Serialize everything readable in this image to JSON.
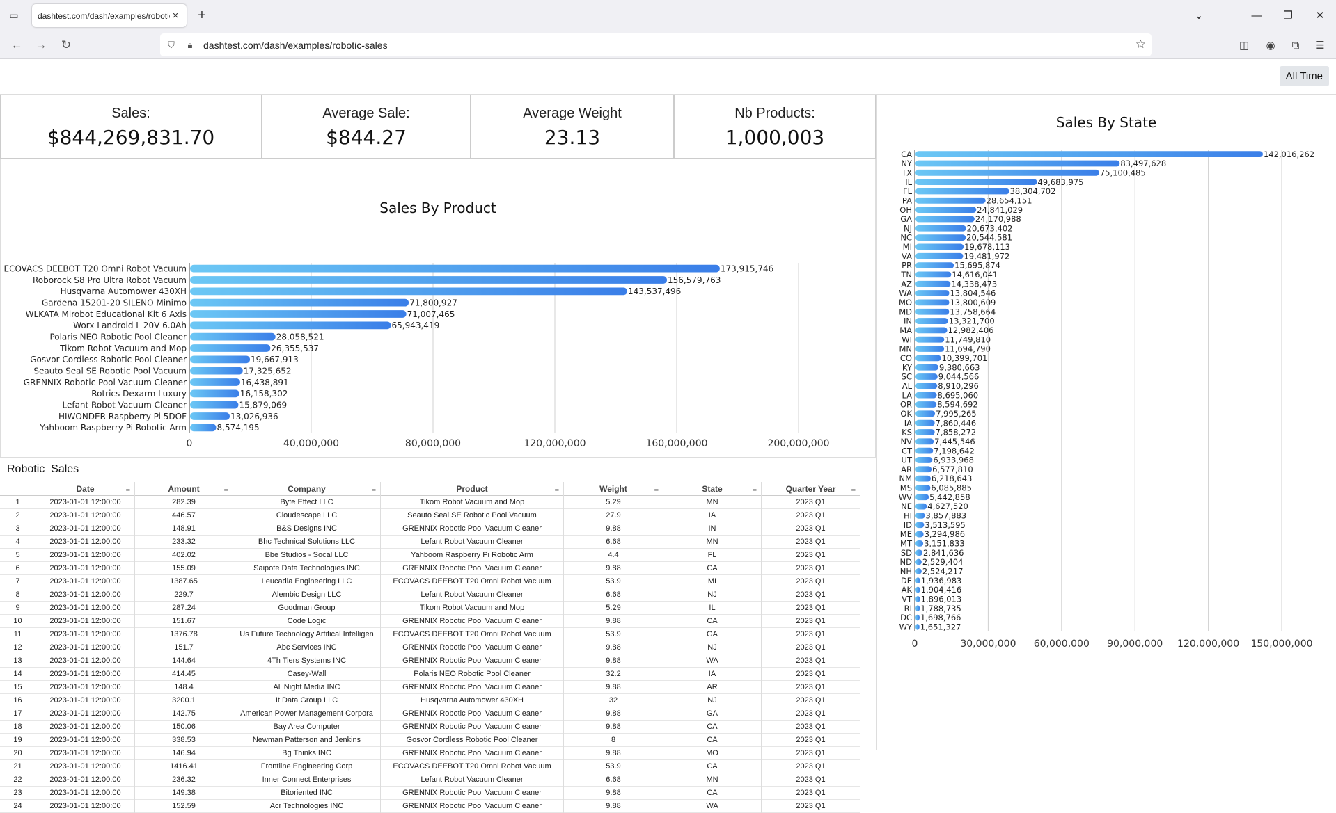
{
  "browser": {
    "tab_title": "dashtest.com/dash/examples/robotic-sales",
    "url": "dashtest.com/dash/examples/robotic-sales",
    "new_tab_label": "+",
    "close_tab_label": "×"
  },
  "toolbar": {
    "all_time_label": "All Time"
  },
  "kpis": [
    {
      "label": "Sales:",
      "value": "$844,269,831.70"
    },
    {
      "label": "Average Sale:",
      "value": "$844.27"
    },
    {
      "label": "Average Weight",
      "value": "23.13"
    },
    {
      "label": "Nb Products:",
      "value": "1,000,003"
    }
  ],
  "chart_data": [
    {
      "type": "bar",
      "orientation": "horizontal",
      "title": "Sales By Product",
      "xlim": [
        0,
        200000000
      ],
      "xticks": [
        0,
        40000000,
        80000000,
        120000000,
        160000000,
        200000000
      ],
      "xtick_labels": [
        "0",
        "40,000,000",
        "80,000,000",
        "120,000,000",
        "160,000,000",
        "200,000,000"
      ],
      "grid": true,
      "categories": [
        "ECOVACS DEEBOT T20 Omni Robot Vacuum",
        "Roborock S8 Pro Ultra Robot Vacuum",
        "Husqvarna Automower 430XH",
        "Gardena 15201-20 SILENO Minimo",
        "WLKATA Mirobot Educational Kit 6 Axis",
        "Worx Landroid L 20V 6.0Ah",
        "Polaris NEO Robotic Pool Cleaner",
        "Tikom Robot Vacuum and Mop",
        "Gosvor Cordless Robotic Pool Cleaner",
        "Seauto Seal SE Robotic Pool Vacuum",
        "GRENNIX Robotic Pool Vacuum Cleaner",
        "Rotrics Dexarm Luxury",
        "Lefant Robot Vacuum Cleaner",
        "HIWONDER Raspberry Pi 5DOF",
        "Yahboom Raspberry Pi Robotic Arm"
      ],
      "values": [
        173915746,
        156579763,
        143537496,
        71800927,
        71007465,
        65943419,
        28058521,
        26355537,
        19667913,
        17325652,
        16438891,
        16158302,
        15879069,
        13026936,
        8574195
      ],
      "value_labels": [
        "173,915,746",
        "156,579,763",
        "143,537,496",
        "71,800,927",
        "71,007,465",
        "65,943,419",
        "28,058,521",
        "26,355,537",
        "19,667,913",
        "17,325,652",
        "16,438,891",
        "16,158,302",
        "15,879,069",
        "13,026,936",
        "8,574,195"
      ]
    },
    {
      "type": "bar",
      "orientation": "horizontal",
      "title": "Sales By State",
      "xlim": [
        0,
        150000000
      ],
      "xticks": [
        0,
        30000000,
        60000000,
        90000000,
        120000000,
        150000000
      ],
      "xtick_labels": [
        "0",
        "30,000,000",
        "60,000,000",
        "90,000,000",
        "120,000,000",
        "150,000,000"
      ],
      "grid": true,
      "categories": [
        "CA",
        "NY",
        "TX",
        "IL",
        "FL",
        "PA",
        "OH",
        "GA",
        "NJ",
        "NC",
        "MI",
        "VA",
        "PR",
        "TN",
        "AZ",
        "WA",
        "MO",
        "MD",
        "IN",
        "MA",
        "WI",
        "MN",
        "CO",
        "KY",
        "SC",
        "AL",
        "LA",
        "OR",
        "OK",
        "IA",
        "KS",
        "NV",
        "CT",
        "UT",
        "AR",
        "NM",
        "MS",
        "WV",
        "NE",
        "HI",
        "ID",
        "ME",
        "MT",
        "SD",
        "ND",
        "NH",
        "DE",
        "AK",
        "VT",
        "RI",
        "DC",
        "WY"
      ],
      "values": [
        142016262,
        83497628,
        75100485,
        49683975,
        38304702,
        28654151,
        24841029,
        24170988,
        20673402,
        20544581,
        19678113,
        19481972,
        15695874,
        14616041,
        14338473,
        13804546,
        13800609,
        13758664,
        13321700,
        12982406,
        11749810,
        11694790,
        10399701,
        9380663,
        9044566,
        8910296,
        8695060,
        8594692,
        7995265,
        7860446,
        7858272,
        7445546,
        7198642,
        6933968,
        6577810,
        6218643,
        6085885,
        5442858,
        4627520,
        3857883,
        3513595,
        3294986,
        3151833,
        2841636,
        2529404,
        2524217,
        1936983,
        1904416,
        1896013,
        1788735,
        1698766,
        1651327
      ],
      "value_labels": [
        "142,016,262",
        "83,497,628",
        "75,100,485",
        "49,683,975",
        "38,304,702",
        "28,654,151",
        "24,841,029",
        "24,170,988",
        "20,673,402",
        "20,544,581",
        "19,678,113",
        "19,481,972",
        "15,695,874",
        "14,616,041",
        "14,338,473",
        "13,804,546",
        "13,800,609",
        "13,758,664",
        "13,321,700",
        "12,982,406",
        "11,749,810",
        "11,694,790",
        "10,399,701",
        "9,380,663",
        "9,044,566",
        "8,910,296",
        "8,695,060",
        "8,594,692",
        "7,995,265",
        "7,860,446",
        "7,858,272",
        "7,445,546",
        "7,198,642",
        "6,933,968",
        "6,577,810",
        "6,218,643",
        "6,085,885",
        "5,442,858",
        "4,627,520",
        "3,857,883",
        "3,513,595",
        "3,294,986",
        "3,151,833",
        "2,841,636",
        "2,529,404",
        "2,524,217",
        "1,936,983",
        "1,904,416",
        "1,896,013",
        "1,788,735",
        "1,698,766",
        "1,651,327"
      ]
    }
  ],
  "table": {
    "title": "Robotic_Sales",
    "columns": [
      "Date",
      "Amount",
      "Company",
      "Product",
      "Weight",
      "State",
      "Quarter Year"
    ],
    "rows": [
      [
        "1",
        "2023-01-01 12:00:00",
        "282.39",
        "Byte Effect LLC",
        "Tikom Robot Vacuum and Mop",
        "5.29",
        "MN",
        "2023 Q1"
      ],
      [
        "2",
        "2023-01-01 12:00:00",
        "446.57",
        "Cloudescape LLC",
        "Seauto Seal SE Robotic Pool Vacuum",
        "27.9",
        "IA",
        "2023 Q1"
      ],
      [
        "3",
        "2023-01-01 12:00:00",
        "148.91",
        "B&S Designs INC",
        "GRENNIX Robotic Pool Vacuum Cleaner",
        "9.88",
        "IN",
        "2023 Q1"
      ],
      [
        "4",
        "2023-01-01 12:00:00",
        "233.32",
        "Bhc Technical Solutions LLC",
        "Lefant Robot Vacuum Cleaner",
        "6.68",
        "MN",
        "2023 Q1"
      ],
      [
        "5",
        "2023-01-01 12:00:00",
        "402.02",
        "Bbe Studios - Socal LLC",
        "Yahboom Raspberry Pi Robotic Arm",
        "4.4",
        "FL",
        "2023 Q1"
      ],
      [
        "6",
        "2023-01-01 12:00:00",
        "155.09",
        "Saipote Data Technologies INC",
        "GRENNIX Robotic Pool Vacuum Cleaner",
        "9.88",
        "CA",
        "2023 Q1"
      ],
      [
        "7",
        "2023-01-01 12:00:00",
        "1387.65",
        "Leucadia Engineering LLC",
        "ECOVACS DEEBOT T20 Omni Robot Vacuum",
        "53.9",
        "MI",
        "2023 Q1"
      ],
      [
        "8",
        "2023-01-01 12:00:00",
        "229.7",
        "Alembic Design LLC",
        "Lefant Robot Vacuum Cleaner",
        "6.68",
        "NJ",
        "2023 Q1"
      ],
      [
        "9",
        "2023-01-01 12:00:00",
        "287.24",
        "Goodman Group",
        "Tikom Robot Vacuum and Mop",
        "5.29",
        "IL",
        "2023 Q1"
      ],
      [
        "10",
        "2023-01-01 12:00:00",
        "151.67",
        "Code Logic",
        "GRENNIX Robotic Pool Vacuum Cleaner",
        "9.88",
        "CA",
        "2023 Q1"
      ],
      [
        "11",
        "2023-01-01 12:00:00",
        "1376.78",
        "Us Future Technology Artifical Intelligen",
        "ECOVACS DEEBOT T20 Omni Robot Vacuum",
        "53.9",
        "GA",
        "2023 Q1"
      ],
      [
        "12",
        "2023-01-01 12:00:00",
        "151.7",
        "Abc Services INC",
        "GRENNIX Robotic Pool Vacuum Cleaner",
        "9.88",
        "NJ",
        "2023 Q1"
      ],
      [
        "13",
        "2023-01-01 12:00:00",
        "144.64",
        "4Th Tiers Systems INC",
        "GRENNIX Robotic Pool Vacuum Cleaner",
        "9.88",
        "WA",
        "2023 Q1"
      ],
      [
        "14",
        "2023-01-01 12:00:00",
        "414.45",
        "Casey-Wall",
        "Polaris NEO Robotic Pool Cleaner",
        "32.2",
        "IA",
        "2023 Q1"
      ],
      [
        "15",
        "2023-01-01 12:00:00",
        "148.4",
        "All Night Media INC",
        "GRENNIX Robotic Pool Vacuum Cleaner",
        "9.88",
        "AR",
        "2023 Q1"
      ],
      [
        "16",
        "2023-01-01 12:00:00",
        "3200.1",
        "It Data Group LLC",
        "Husqvarna Automower 430XH",
        "32",
        "NJ",
        "2023 Q1"
      ],
      [
        "17",
        "2023-01-01 12:00:00",
        "142.75",
        "American Power Management Corpora",
        "GRENNIX Robotic Pool Vacuum Cleaner",
        "9.88",
        "GA",
        "2023 Q1"
      ],
      [
        "18",
        "2023-01-01 12:00:00",
        "150.06",
        "Bay Area Computer",
        "GRENNIX Robotic Pool Vacuum Cleaner",
        "9.88",
        "CA",
        "2023 Q1"
      ],
      [
        "19",
        "2023-01-01 12:00:00",
        "338.53",
        "Newman Patterson and Jenkins",
        "Gosvor Cordless Robotic Pool Cleaner",
        "8",
        "CA",
        "2023 Q1"
      ],
      [
        "20",
        "2023-01-01 12:00:00",
        "146.94",
        "Bg Thinks INC",
        "GRENNIX Robotic Pool Vacuum Cleaner",
        "9.88",
        "MO",
        "2023 Q1"
      ],
      [
        "21",
        "2023-01-01 12:00:00",
        "1416.41",
        "Frontline Engineering Corp",
        "ECOVACS DEEBOT T20 Omni Robot Vacuum",
        "53.9",
        "CA",
        "2023 Q1"
      ],
      [
        "22",
        "2023-01-01 12:00:00",
        "236.32",
        "Inner Connect Enterprises",
        "Lefant Robot Vacuum Cleaner",
        "6.68",
        "MN",
        "2023 Q1"
      ],
      [
        "23",
        "2023-01-01 12:00:00",
        "149.38",
        "Bitoriented INC",
        "GRENNIX Robotic Pool Vacuum Cleaner",
        "9.88",
        "CA",
        "2023 Q1"
      ],
      [
        "24",
        "2023-01-01 12:00:00",
        "152.59",
        "Acr Technologies INC",
        "GRENNIX Robotic Pool Vacuum Cleaner",
        "9.88",
        "WA",
        "2023 Q1"
      ]
    ]
  },
  "colors": {
    "bar_start": "#6cc8f5",
    "bar_end": "#3a7ee8",
    "grid": "#d0d0d0"
  },
  "icons": [
    "tab-list-icon",
    "close-icon",
    "plus-icon",
    "chevron-down-icon",
    "minimize-icon",
    "restore-icon",
    "back-arrow-icon",
    "forward-arrow-icon",
    "reload-icon",
    "shield-icon",
    "lock-icon",
    "star-icon",
    "pocket-icon",
    "account-icon",
    "extensions-icon",
    "menu-icon",
    "filter-icon"
  ]
}
